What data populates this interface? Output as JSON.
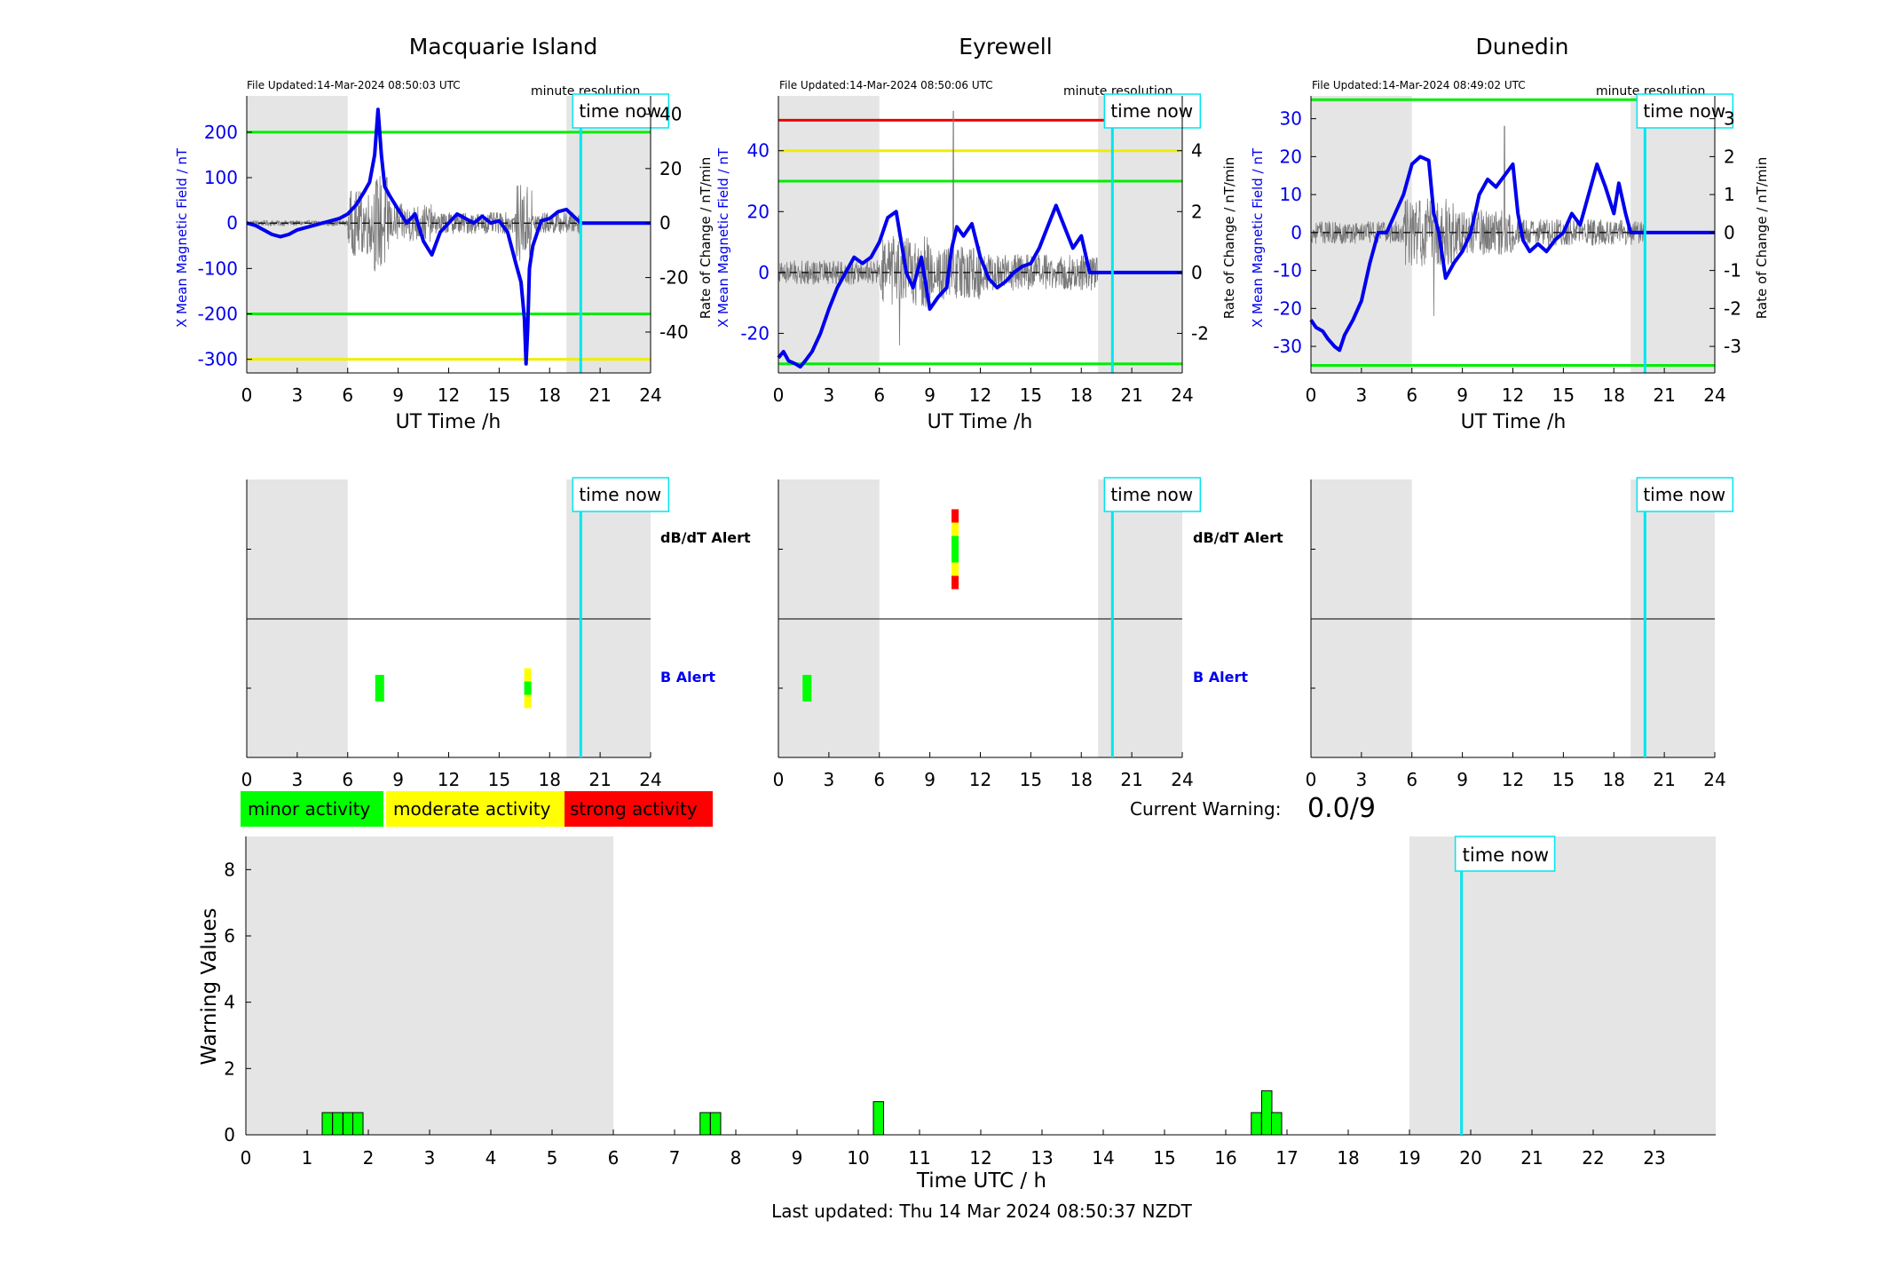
{
  "colors": {
    "shade": "#e5e5e5",
    "series_blue": "#0000ee",
    "rate_gray": "#7a7a7a",
    "time_now": "#00e5ee",
    "threshold_green": "#00ee00",
    "threshold_yellow": "#eeee00",
    "threshold_red": "#ee0000",
    "minor": "#00ff00",
    "moderate": "#ffff00",
    "strong": "#ff0000"
  },
  "time_now_label": "time now",
  "minute_resolution_label": "minute resolution",
  "dbdt_alert_label": "dB/dT Alert",
  "b_alert_label": "B Alert",
  "legend": {
    "minor": "minor activity",
    "moderate": "moderate activity",
    "strong": "strong activity"
  },
  "current_warning": {
    "label": "Current Warning:",
    "value": "0.0/9"
  },
  "last_updated": "Last updated: Thu 14 Mar 2024 08:50:37 NZDT",
  "chart_data": [
    {
      "type": "line",
      "station": "Macquarie Island",
      "title": "Macquarie Island",
      "file_updated": "File Updated:14-Mar-2024 08:50:03 UTC",
      "xlabel": "UT Time /h",
      "ylabel": "X Mean Magnetic Field / nT",
      "y2label": "",
      "xlim": [
        0,
        24
      ],
      "ylim": [
        -330,
        280
      ],
      "y2lim": [
        -55,
        46.67
      ],
      "x_ticks": [
        0,
        3,
        6,
        9,
        12,
        15,
        18,
        21,
        24
      ],
      "y_ticks": [
        -300,
        -200,
        -100,
        0,
        100,
        200
      ],
      "y_tick_labels": [
        "-300",
        "-200",
        "-100",
        "0",
        "100",
        "200"
      ],
      "y2_ticks": [
        -40,
        -20,
        0,
        20,
        40
      ],
      "y2_tick_labels": [
        "-40",
        "-20",
        "0",
        "20",
        "40"
      ],
      "shaded": [
        [
          0,
          6
        ],
        [
          19,
          24
        ]
      ],
      "time_now": 19.85,
      "thresholds": [
        {
          "y": 200,
          "color": "green"
        },
        {
          "y": -200,
          "color": "green"
        },
        {
          "y": -300,
          "color": "yellow"
        }
      ],
      "series": [
        {
          "name": "X Mean Magnetic Field",
          "x": [
            0,
            0.5,
            1,
            1.5,
            2,
            2.5,
            3,
            3.5,
            4,
            4.5,
            5,
            5.5,
            6,
            6.5,
            7,
            7.3,
            7.6,
            7.8,
            8,
            8.2,
            8.5,
            9,
            9.5,
            10,
            10.5,
            11,
            11.5,
            12,
            12.5,
            13,
            13.5,
            14,
            14.5,
            15,
            15.5,
            16,
            16.3,
            16.5,
            16.6,
            16.7,
            16.8,
            17,
            17.5,
            18,
            18.5,
            19,
            19.85,
            20,
            24
          ],
          "y": [
            0,
            -5,
            -15,
            -25,
            -30,
            -25,
            -15,
            -10,
            -5,
            0,
            5,
            10,
            20,
            40,
            70,
            90,
            150,
            250,
            150,
            80,
            60,
            30,
            0,
            20,
            -40,
            -70,
            -20,
            0,
            20,
            10,
            0,
            15,
            0,
            5,
            -20,
            -90,
            -130,
            -210,
            -310,
            -230,
            -100,
            -50,
            5,
            10,
            25,
            30,
            0,
            0,
            0
          ]
        },
        {
          "name": "Rate of Change",
          "axis": "y2",
          "style": "noise",
          "x_start": 0,
          "x_end": 19.85,
          "bursts": [
            {
              "x": [
                0,
                6
              ],
              "amp": 1
            },
            {
              "x": [
                6,
                7.5
              ],
              "amp": 12
            },
            {
              "x": [
                7.5,
                8.5
              ],
              "amp": 18
            },
            {
              "x": [
                8.5,
                11
              ],
              "amp": 7
            },
            {
              "x": [
                11,
                16
              ],
              "amp": 4
            },
            {
              "x": [
                16,
                17
              ],
              "amp": 14
            },
            {
              "x": [
                17,
                19.85
              ],
              "amp": 4
            }
          ]
        }
      ],
      "alerts": {
        "dbdt": [],
        "b": [
          {
            "x": 7.9,
            "colors": [
              "green"
            ]
          },
          {
            "x": 16.7,
            "colors": [
              "yellow",
              "green",
              "yellow"
            ]
          }
        ]
      }
    },
    {
      "type": "line",
      "station": "Eyrewell",
      "title": "Eyrewell",
      "file_updated": "File Updated:14-Mar-2024 08:50:06 UTC",
      "xlabel": "UT Time /h",
      "ylabel": "X Mean Magnetic Field / nT",
      "y2label": "Rate of Change / nT/min",
      "xlim": [
        0,
        24
      ],
      "ylim": [
        -33,
        58
      ],
      "y2lim": [
        -3.3,
        5.8
      ],
      "x_ticks": [
        0,
        3,
        6,
        9,
        12,
        15,
        18,
        21,
        24
      ],
      "y_ticks": [
        -20,
        0,
        20,
        40
      ],
      "y_tick_labels": [
        "-20",
        "0",
        "20",
        "40"
      ],
      "y2_ticks": [
        -2,
        0,
        2,
        4
      ],
      "y2_tick_labels": [
        "-2",
        "0",
        "2",
        "4"
      ],
      "shaded": [
        [
          0,
          6
        ],
        [
          19,
          24
        ]
      ],
      "time_now": 19.85,
      "thresholds": [
        {
          "y": 50,
          "color": "red"
        },
        {
          "y": 40,
          "color": "yellow"
        },
        {
          "y": 30,
          "color": "green"
        },
        {
          "y": -30,
          "color": "green"
        }
      ],
      "series": [
        {
          "name": "X Mean Magnetic Field",
          "x": [
            0,
            0.3,
            0.6,
            1,
            1.3,
            1.6,
            2,
            2.5,
            3,
            3.5,
            4,
            4.5,
            5,
            5.5,
            6,
            6.5,
            7,
            7.3,
            7.6,
            8,
            8.5,
            9,
            9.5,
            10,
            10.3,
            10.6,
            11,
            11.5,
            12,
            12.5,
            13,
            13.5,
            14,
            14.5,
            15,
            15.5,
            16,
            16.5,
            17,
            17.5,
            18,
            18.5,
            19,
            20,
            24
          ],
          "y": [
            -28,
            -26,
            -29,
            -30,
            -31,
            -29,
            -26,
            -20,
            -12,
            -5,
            0,
            5,
            3,
            5,
            10,
            18,
            20,
            10,
            0,
            -5,
            5,
            -12,
            -8,
            -5,
            8,
            15,
            12,
            16,
            5,
            -2,
            -5,
            -3,
            0,
            2,
            3,
            8,
            15,
            22,
            15,
            8,
            12,
            0,
            0,
            0,
            0
          ]
        },
        {
          "name": "Rate of Change",
          "axis": "y2",
          "style": "noise",
          "x_start": 0,
          "x_end": 19,
          "bursts": [
            {
              "x": [
                0,
                6
              ],
              "amp": 0.4
            },
            {
              "x": [
                6,
                9
              ],
              "amp": 1.2
            },
            {
              "x": [
                9,
                12
              ],
              "amp": 0.9
            },
            {
              "x": [
                12,
                19
              ],
              "amp": 0.6
            }
          ],
          "spikes": [
            {
              "x": 10.4,
              "y": 5.3
            },
            {
              "x": 7.2,
              "y": -2.4
            }
          ]
        }
      ],
      "alerts": {
        "dbdt": [
          {
            "x": 10.5,
            "colors": [
              "red",
              "yellow",
              "green",
              "green",
              "yellow",
              "red"
            ]
          }
        ],
        "b": [
          {
            "x": 1.7,
            "colors": [
              "green"
            ]
          }
        ]
      }
    },
    {
      "type": "line",
      "station": "Dunedin",
      "title": "Dunedin",
      "file_updated": "File Updated:14-Mar-2024 08:49:02 UTC",
      "xlabel": "UT Time /h",
      "ylabel": "X Mean Magnetic Field / nT",
      "y2label": "Rate of Change / nT/min",
      "xlim": [
        0,
        24
      ],
      "ylim": [
        -37,
        36
      ],
      "y2lim": [
        -3.7,
        3.6
      ],
      "x_ticks": [
        0,
        3,
        6,
        9,
        12,
        15,
        18,
        21,
        24
      ],
      "y_ticks": [
        -30,
        -20,
        -10,
        0,
        10,
        20,
        30
      ],
      "y_tick_labels": [
        "-30",
        "-20",
        "-10",
        "0",
        "10",
        "20",
        "30"
      ],
      "y2_ticks": [
        -3,
        -2,
        -1,
        0,
        1,
        2,
        3
      ],
      "y2_tick_labels": [
        "-3",
        "-2",
        "-1",
        "0",
        "1",
        "2",
        "3"
      ],
      "shaded": [
        [
          0,
          6
        ],
        [
          19,
          24
        ]
      ],
      "time_now": 19.85,
      "thresholds": [
        {
          "y": 35,
          "color": "green"
        },
        {
          "y": -35,
          "color": "green"
        }
      ],
      "series": [
        {
          "name": "X Mean Magnetic Field",
          "x": [
            0,
            0.3,
            0.7,
            1,
            1.4,
            1.7,
            2,
            2.5,
            3,
            3.5,
            4,
            4.5,
            5,
            5.5,
            6,
            6.5,
            7,
            7.3,
            7.6,
            8,
            8.5,
            9,
            9.5,
            10,
            10.5,
            11,
            11.5,
            12,
            12.3,
            12.6,
            13,
            13.5,
            14,
            14.5,
            15,
            15.5,
            16,
            16.5,
            17,
            17.5,
            18,
            18.3,
            18.7,
            19,
            19.5,
            20,
            24
          ],
          "y": [
            -23,
            -25,
            -26,
            -28,
            -30,
            -31,
            -27,
            -23,
            -18,
            -8,
            0,
            0,
            5,
            10,
            18,
            20,
            19,
            5,
            0,
            -12,
            -8,
            -5,
            0,
            10,
            14,
            12,
            15,
            18,
            5,
            -2,
            -5,
            -3,
            -5,
            -2,
            0,
            5,
            2,
            10,
            18,
            12,
            5,
            13,
            5,
            0,
            0,
            0,
            0
          ]
        },
        {
          "name": "Rate of Change",
          "axis": "y2",
          "style": "noise",
          "x_start": 0,
          "x_end": 19.85,
          "bursts": [
            {
              "x": [
                0,
                5.5
              ],
              "amp": 0.3
            },
            {
              "x": [
                5.5,
                8.5
              ],
              "amp": 0.9
            },
            {
              "x": [
                8.5,
                12
              ],
              "amp": 0.6
            },
            {
              "x": [
                12,
                19.85
              ],
              "amp": 0.35
            }
          ],
          "spikes": [
            {
              "x": 11.5,
              "y": 2.8
            },
            {
              "x": 7.3,
              "y": -2.2
            }
          ]
        }
      ],
      "alerts": {
        "dbdt": [],
        "b": []
      }
    },
    {
      "type": "bar",
      "title": "",
      "xlabel": "Time UTC / h",
      "ylabel": "Warning Values",
      "xlim": [
        0,
        24
      ],
      "ylim": [
        0,
        9
      ],
      "x_ticks": [
        0,
        1,
        2,
        3,
        4,
        5,
        6,
        7,
        8,
        9,
        10,
        11,
        12,
        13,
        14,
        15,
        16,
        17,
        18,
        19,
        20,
        21,
        22,
        23
      ],
      "y_ticks": [
        0,
        2,
        4,
        6,
        8
      ],
      "shaded": [
        [
          0,
          6
        ],
        [
          19,
          24
        ]
      ],
      "time_now": 19.85,
      "bar_width_h": 0.1667,
      "bars": [
        {
          "x": 1.33,
          "value": 0.67
        },
        {
          "x": 1.5,
          "value": 0.67
        },
        {
          "x": 1.67,
          "value": 0.67
        },
        {
          "x": 1.83,
          "value": 0.67
        },
        {
          "x": 7.5,
          "value": 0.67
        },
        {
          "x": 7.67,
          "value": 0.67
        },
        {
          "x": 10.33,
          "value": 1.0
        },
        {
          "x": 16.5,
          "value": 0.67
        },
        {
          "x": 16.67,
          "value": 1.33
        },
        {
          "x": 16.83,
          "value": 0.67
        }
      ]
    }
  ]
}
